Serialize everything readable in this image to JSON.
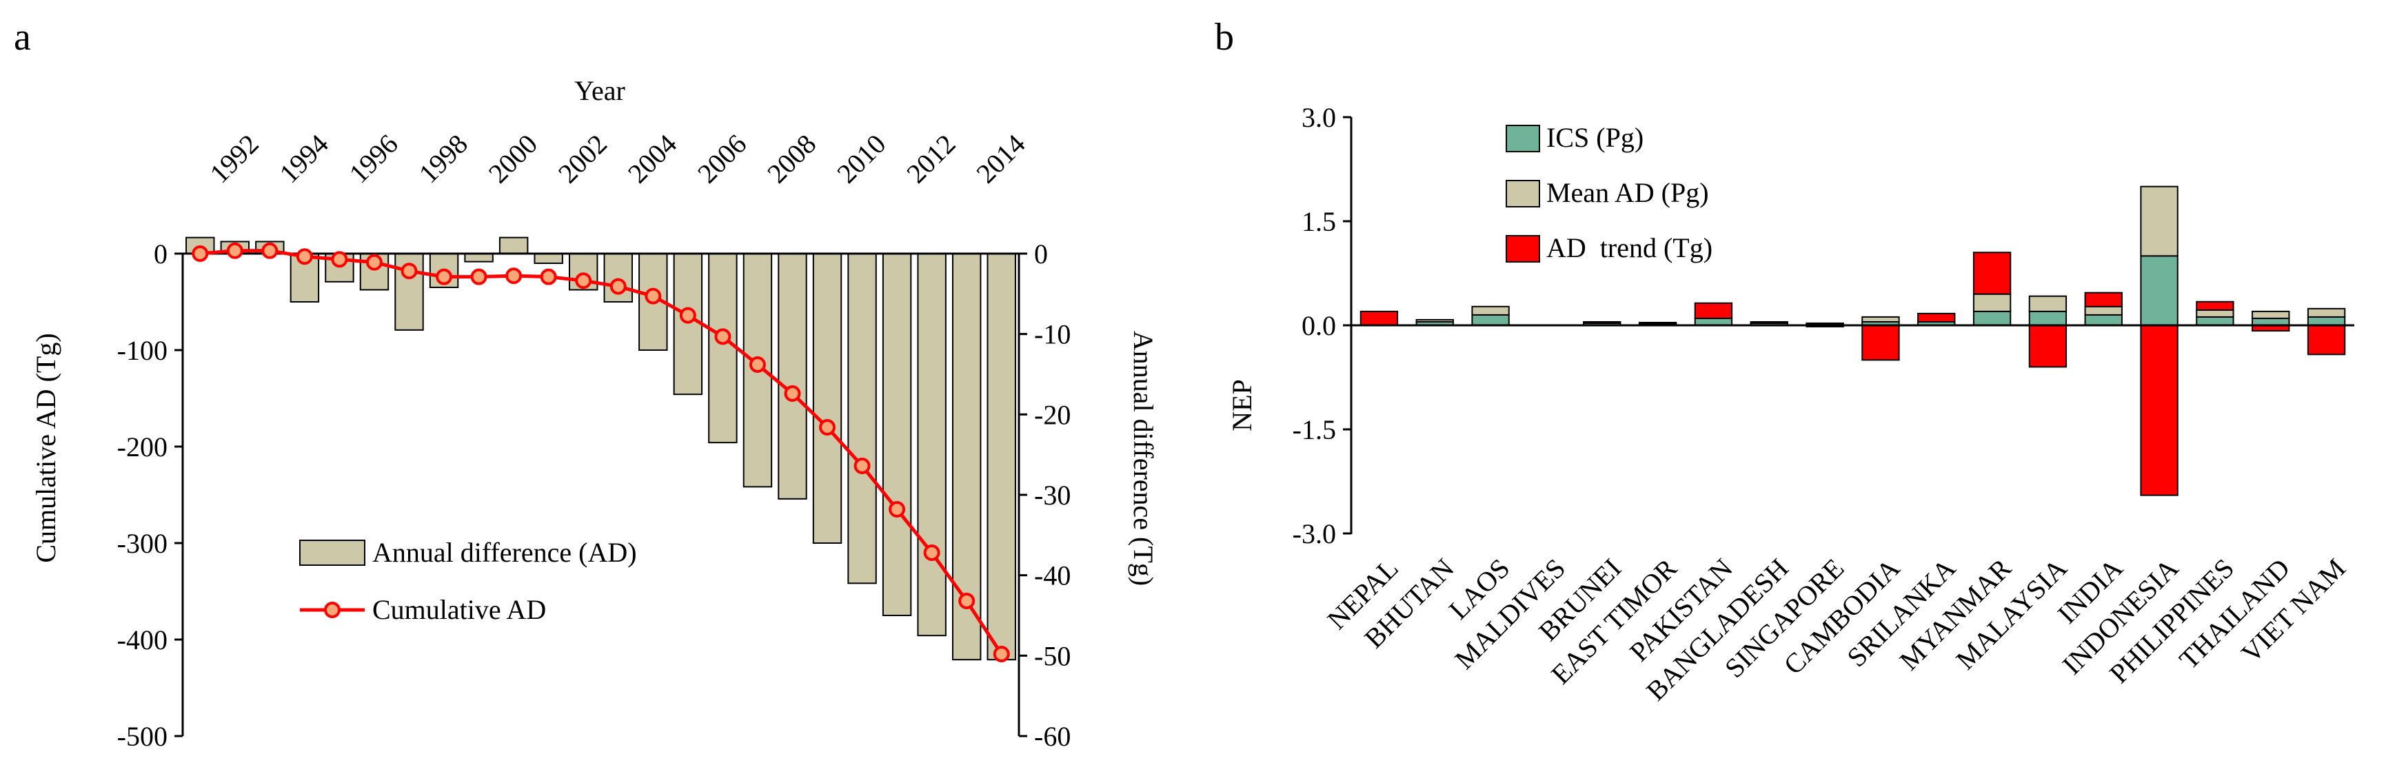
{
  "panel_a_label": "a",
  "panel_b_label": "b",
  "chart_data": [
    {
      "type": "bar+line",
      "panel": "a",
      "title": "",
      "xlabel": "Year",
      "x_axis_position": "top",
      "years": [
        1991,
        1992,
        1993,
        1994,
        1995,
        1996,
        1997,
        1998,
        1999,
        2000,
        2001,
        2002,
        2003,
        2004,
        2005,
        2006,
        2007,
        2008,
        2009,
        2010,
        2011,
        2012,
        2013,
        2014
      ],
      "xtick_labels": [
        "1992",
        "1994",
        "1996",
        "1998",
        "2000",
        "2002",
        "2004",
        "2006",
        "2008",
        "2010",
        "2012",
        "2014"
      ],
      "left_axis": {
        "label": "Cumulative AD (Tg)",
        "ylim": [
          -500,
          0
        ],
        "ticks": [
          "0",
          "-100",
          "-200",
          "-300",
          "-400",
          "-500"
        ]
      },
      "right_axis": {
        "label": "Annual difference (Tg)",
        "ylim": [
          -60,
          0
        ],
        "ticks": [
          "0",
          "-10",
          "-20",
          "-30",
          "-40",
          "-50",
          "-60"
        ]
      },
      "series": [
        {
          "name": "Annual difference (AD)",
          "axis": "right",
          "type": "bar",
          "color": "#cdc8a8",
          "values": [
            2,
            1.5,
            1.5,
            -6,
            -3.5,
            -4.5,
            -9.5,
            -4.2,
            -1,
            2,
            -1.2,
            -4.5,
            -6,
            -12,
            -17.5,
            -23.5,
            -29,
            -30.5,
            -36,
            -41,
            -45,
            -47.5,
            -50.5,
            -50.5
          ]
        },
        {
          "name": "Cumulative AD",
          "axis": "left",
          "type": "line",
          "color": "#ff0000",
          "values": [
            0,
            3,
            3,
            -3,
            -6,
            -9,
            -18,
            -24,
            -24,
            -23,
            -24,
            -28,
            -34,
            -44,
            -64,
            -86,
            -115,
            -145,
            -180,
            -220,
            -265,
            -310,
            -360,
            -415
          ]
        }
      ],
      "legend": [
        "Annual difference (AD)",
        "Cumulative AD"
      ],
      "legend_placement": "bottom-left"
    },
    {
      "type": "stacked-bar",
      "panel": "b",
      "title": "",
      "ylabel": "NEP",
      "ylim": [
        -3.0,
        3.0
      ],
      "yticks": [
        "3.0",
        "1.5",
        "0.0",
        "-1.5",
        "-3.0"
      ],
      "categories": [
        "NEPAL",
        "BHUTAN",
        "LAOS",
        "MALDIVES",
        "BRUNEI",
        "EAST TIMOR",
        "PAKISTAN",
        "BANGLADESH",
        "SINGAPORE",
        "CAMBODIA",
        "SRILANKA",
        "MYANMAR",
        "MALAYSIA",
        "INDIA",
        "INDONESIA",
        "PHILIPPINES",
        "THAILAND",
        "VIET NAM"
      ],
      "series": [
        {
          "name": "ICS (Pg)",
          "color": "#6fb39a",
          "values": [
            0.0,
            0.05,
            0.15,
            0.0,
            0.03,
            0.02,
            0.1,
            0.03,
            0.02,
            0.05,
            0.05,
            0.2,
            0.2,
            0.15,
            1.0,
            0.12,
            0.1,
            0.12
          ]
        },
        {
          "name": "Mean AD (Pg)",
          "color": "#cdc8a8",
          "values": [
            0.0,
            0.03,
            0.12,
            0.0,
            0.02,
            0.02,
            0.0,
            0.02,
            0.01,
            0.07,
            0.0,
            0.25,
            0.22,
            0.12,
            1.0,
            0.1,
            0.1,
            0.12
          ]
        },
        {
          "name": "AD  trend (Tg)",
          "color": "#ff0000",
          "values": [
            0.2,
            0.0,
            0.0,
            0.0,
            0.0,
            0.0,
            0.22,
            0.0,
            -0.02,
            -0.5,
            0.12,
            0.6,
            -0.6,
            0.2,
            -2.45,
            0.12,
            -0.08,
            -0.42
          ]
        }
      ],
      "legend": [
        "ICS (Pg)",
        "Mean AD (Pg)",
        "AD  trend (Tg)"
      ],
      "legend_placement": "top-left"
    }
  ]
}
